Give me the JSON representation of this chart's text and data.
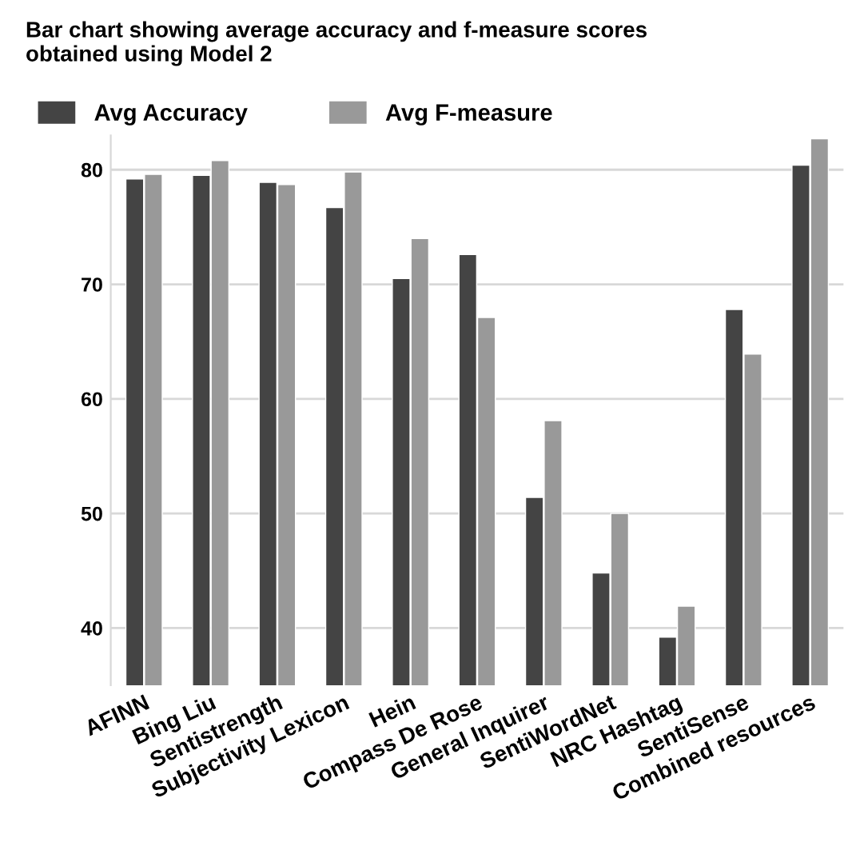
{
  "chart_data": {
    "type": "bar",
    "title": "Bar chart showing average accuracy and f-measure scores\nobtained using Model 2",
    "categories": [
      "AFINN",
      "Bing Liu",
      "Sentistrength",
      "Subjectivity Lexicon",
      "Hein",
      "Compass De Rose",
      "General Inquirer",
      "SentiWordNet",
      "NRC Hashtag",
      "SentiSense",
      "Combined resources"
    ],
    "series": [
      {
        "name": "Avg Accuracy",
        "color": "#444444",
        "values": [
          79.2,
          79.5,
          78.9,
          76.7,
          70.5,
          72.6,
          51.4,
          44.8,
          39.2,
          67.8,
          80.4
        ]
      },
      {
        "name": "Avg F-measure",
        "color": "#999999",
        "values": [
          79.6,
          80.8,
          78.7,
          79.8,
          74.0,
          67.1,
          58.1,
          50.0,
          41.9,
          63.9,
          82.7
        ]
      }
    ],
    "ylim": [
      35,
      83
    ],
    "yticks": [
      40,
      50,
      60,
      70,
      80
    ],
    "grid": "y",
    "legend": "top left"
  }
}
